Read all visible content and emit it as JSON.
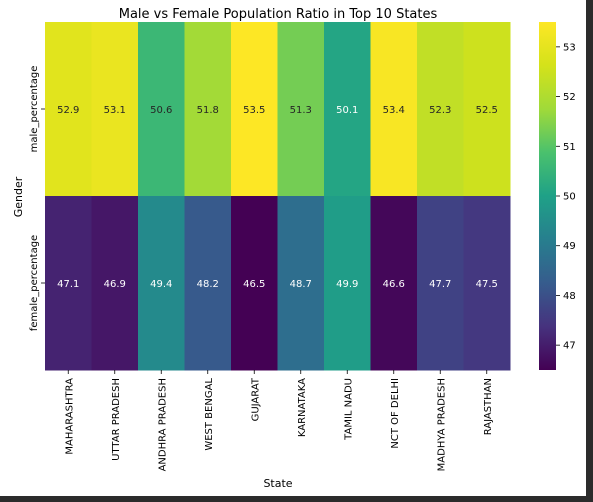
{
  "chart_data": {
    "type": "heatmap",
    "title": "Male vs Female Population Ratio in Top 10 States",
    "xlabel": "State",
    "ylabel": "Gender",
    "x_categories": [
      "MAHARASHTRA",
      "UTTAR PRADESH",
      "ANDHRA PRADESH",
      "WEST BENGAL",
      "GUJARAT",
      "KARNATAKA",
      "TAMIL NADU",
      "NCT OF DELHI",
      "MADHYA PRADESH",
      "RAJASTHAN"
    ],
    "y_categories": [
      "male_percentage",
      "female_percentage"
    ],
    "values": [
      [
        52.9,
        53.1,
        50.6,
        51.8,
        53.5,
        51.3,
        50.1,
        53.4,
        52.3,
        52.5
      ],
      [
        47.1,
        46.9,
        49.4,
        48.2,
        46.5,
        48.7,
        49.9,
        46.6,
        47.7,
        47.5
      ]
    ],
    "colormap": "viridis",
    "vmin": 46.5,
    "vmax": 53.5,
    "colorbar_ticks": [
      "47",
      "48",
      "49",
      "50",
      "51",
      "52",
      "53"
    ],
    "annotations": true
  }
}
